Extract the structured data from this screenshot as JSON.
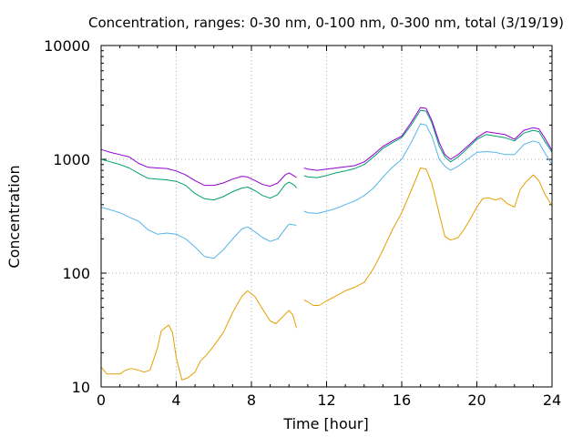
{
  "chart_data": {
    "type": "line",
    "title": "Concentration, ranges: 0-30 nm, 0-100 nm, 0-300 nm, total (3/19/19)",
    "xlabel": "Time [hour]",
    "ylabel": "Concentration",
    "xlim": [
      0,
      24
    ],
    "ylim": [
      10,
      10000
    ],
    "yscale": "log",
    "grid": true,
    "legend": "none",
    "x_ticks": [
      "0",
      "4",
      "8",
      "12",
      "16",
      "20",
      "24"
    ],
    "y_ticks": [
      "10",
      "100",
      "1000",
      "10000"
    ],
    "series": [
      {
        "color": "#e69f00",
        "segments": [
          [
            [
              0,
              15
            ],
            [
              0.3,
              13
            ],
            [
              0.6,
              13
            ],
            [
              1,
              13
            ],
            [
              1.3,
              14
            ],
            [
              1.6,
              14.5
            ],
            [
              2,
              14
            ],
            [
              2.3,
              13.5
            ],
            [
              2.6,
              14
            ],
            [
              3,
              22
            ],
            [
              3.2,
              31
            ],
            [
              3.4,
              33
            ],
            [
              3.6,
              35
            ],
            [
              3.8,
              30
            ],
            [
              4,
              18
            ],
            [
              4.3,
              11.5
            ],
            [
              4.6,
              12
            ],
            [
              5,
              13.5
            ],
            [
              5.3,
              17
            ],
            [
              5.6,
              19
            ],
            [
              6,
              23
            ],
            [
              6.5,
              30
            ],
            [
              7,
              45
            ],
            [
              7.5,
              63
            ],
            [
              7.8,
              70
            ],
            [
              8.2,
              62
            ],
            [
              8.6,
              48
            ],
            [
              9,
              38
            ],
            [
              9.3,
              36
            ],
            [
              9.7,
              42
            ],
            [
              10,
              47
            ],
            [
              10.2,
              43
            ],
            [
              10.4,
              33
            ]
          ],
          [
            [
              10.8,
              58
            ],
            [
              11,
              56
            ],
            [
              11.3,
              52
            ],
            [
              11.6,
              52
            ],
            [
              12,
              57
            ],
            [
              12.5,
              63
            ],
            [
              13,
              70
            ],
            [
              13.5,
              75
            ],
            [
              14,
              83
            ],
            [
              14.5,
              110
            ],
            [
              15,
              160
            ],
            [
              15.5,
              240
            ],
            [
              16,
              340
            ],
            [
              16.5,
              530
            ],
            [
              17,
              840
            ],
            [
              17.3,
              820
            ],
            [
              17.6,
              620
            ],
            [
              18,
              330
            ],
            [
              18.3,
              210
            ],
            [
              18.6,
              195
            ],
            [
              19,
              205
            ],
            [
              19.3,
              240
            ],
            [
              19.6,
              290
            ],
            [
              20,
              380
            ],
            [
              20.3,
              450
            ],
            [
              20.6,
              460
            ],
            [
              21,
              440
            ],
            [
              21.3,
              455
            ],
            [
              21.6,
              410
            ],
            [
              22,
              380
            ],
            [
              22.3,
              540
            ],
            [
              22.6,
              630
            ],
            [
              23,
              730
            ],
            [
              23.3,
              650
            ],
            [
              23.6,
              500
            ],
            [
              24,
              390
            ]
          ]
        ]
      },
      {
        "color": "#56b4e9",
        "segments": [
          [
            [
              0,
              380
            ],
            [
              0.5,
              360
            ],
            [
              1,
              340
            ],
            [
              1.5,
              310
            ],
            [
              2,
              285
            ],
            [
              2.5,
              240
            ],
            [
              3,
              220
            ],
            [
              3.5,
              225
            ],
            [
              4,
              220
            ],
            [
              4.5,
              200
            ],
            [
              5,
              170
            ],
            [
              5.5,
              140
            ],
            [
              6,
              135
            ],
            [
              6.5,
              160
            ],
            [
              7,
              200
            ],
            [
              7.5,
              245
            ],
            [
              7.8,
              255
            ],
            [
              8.2,
              230
            ],
            [
              8.6,
              205
            ],
            [
              9,
              190
            ],
            [
              9.4,
              200
            ],
            [
              9.8,
              245
            ],
            [
              10,
              270
            ],
            [
              10.3,
              265
            ],
            [
              10.4,
              260
            ]
          ],
          [
            [
              10.8,
              350
            ],
            [
              11,
              340
            ],
            [
              11.5,
              335
            ],
            [
              12,
              350
            ],
            [
              12.5,
              370
            ],
            [
              13,
              400
            ],
            [
              13.5,
              430
            ],
            [
              14,
              480
            ],
            [
              14.5,
              560
            ],
            [
              15,
              700
            ],
            [
              15.5,
              850
            ],
            [
              16,
              1000
            ],
            [
              16.5,
              1400
            ],
            [
              17,
              2050
            ],
            [
              17.3,
              2000
            ],
            [
              17.6,
              1600
            ],
            [
              18,
              1000
            ],
            [
              18.3,
              870
            ],
            [
              18.6,
              800
            ],
            [
              19,
              870
            ],
            [
              19.5,
              1000
            ],
            [
              20,
              1150
            ],
            [
              20.5,
              1170
            ],
            [
              21,
              1150
            ],
            [
              21.5,
              1100
            ],
            [
              22,
              1100
            ],
            [
              22.5,
              1350
            ],
            [
              23,
              1450
            ],
            [
              23.3,
              1400
            ],
            [
              23.6,
              1150
            ],
            [
              24,
              900
            ]
          ]
        ]
      },
      {
        "color": "#009e73",
        "segments": [
          [
            [
              0,
              1000
            ],
            [
              0.5,
              950
            ],
            [
              1,
              900
            ],
            [
              1.5,
              840
            ],
            [
              2,
              750
            ],
            [
              2.5,
              680
            ],
            [
              3,
              670
            ],
            [
              3.5,
              660
            ],
            [
              4,
              640
            ],
            [
              4.5,
              590
            ],
            [
              5,
              500
            ],
            [
              5.5,
              450
            ],
            [
              6,
              440
            ],
            [
              6.5,
              470
            ],
            [
              7,
              520
            ],
            [
              7.5,
              560
            ],
            [
              7.8,
              570
            ],
            [
              8.2,
              530
            ],
            [
              8.6,
              480
            ],
            [
              9,
              455
            ],
            [
              9.4,
              490
            ],
            [
              9.8,
              600
            ],
            [
              10,
              630
            ],
            [
              10.3,
              590
            ],
            [
              10.4,
              560
            ]
          ],
          [
            [
              10.8,
              720
            ],
            [
              11,
              700
            ],
            [
              11.5,
              690
            ],
            [
              12,
              720
            ],
            [
              12.5,
              760
            ],
            [
              13,
              790
            ],
            [
              13.5,
              830
            ],
            [
              14,
              900
            ],
            [
              14.5,
              1050
            ],
            [
              15,
              1250
            ],
            [
              15.5,
              1400
            ],
            [
              16,
              1550
            ],
            [
              16.5,
              2000
            ],
            [
              17,
              2700
            ],
            [
              17.3,
              2650
            ],
            [
              17.6,
              2100
            ],
            [
              18,
              1300
            ],
            [
              18.3,
              1050
            ],
            [
              18.6,
              950
            ],
            [
              19,
              1050
            ],
            [
              19.5,
              1250
            ],
            [
              20,
              1500
            ],
            [
              20.5,
              1650
            ],
            [
              21,
              1600
            ],
            [
              21.5,
              1550
            ],
            [
              22,
              1450
            ],
            [
              22.5,
              1700
            ],
            [
              23,
              1800
            ],
            [
              23.3,
              1750
            ],
            [
              23.6,
              1450
            ],
            [
              24,
              1150
            ]
          ]
        ]
      },
      {
        "color": "#9400d3",
        "segments": [
          [
            [
              0,
              1220
            ],
            [
              0.5,
              1150
            ],
            [
              1,
              1100
            ],
            [
              1.5,
              1050
            ],
            [
              2,
              920
            ],
            [
              2.5,
              850
            ],
            [
              3,
              840
            ],
            [
              3.5,
              830
            ],
            [
              4,
              790
            ],
            [
              4.5,
              730
            ],
            [
              5,
              650
            ],
            [
              5.5,
              590
            ],
            [
              6,
              590
            ],
            [
              6.5,
              620
            ],
            [
              7,
              670
            ],
            [
              7.5,
              710
            ],
            [
              7.8,
              700
            ],
            [
              8.2,
              650
            ],
            [
              8.6,
              600
            ],
            [
              9,
              580
            ],
            [
              9.4,
              620
            ],
            [
              9.8,
              730
            ],
            [
              10,
              760
            ],
            [
              10.3,
              710
            ],
            [
              10.4,
              690
            ]
          ],
          [
            [
              10.8,
              840
            ],
            [
              11,
              820
            ],
            [
              11.5,
              800
            ],
            [
              12,
              820
            ],
            [
              12.5,
              840
            ],
            [
              13,
              860
            ],
            [
              13.5,
              880
            ],
            [
              14,
              950
            ],
            [
              14.5,
              1100
            ],
            [
              15,
              1300
            ],
            [
              15.5,
              1450
            ],
            [
              16,
              1600
            ],
            [
              16.5,
              2100
            ],
            [
              17,
              2850
            ],
            [
              17.3,
              2800
            ],
            [
              17.6,
              2200
            ],
            [
              18,
              1400
            ],
            [
              18.3,
              1100
            ],
            [
              18.6,
              1000
            ],
            [
              19,
              1100
            ],
            [
              19.5,
              1300
            ],
            [
              20,
              1550
            ],
            [
              20.5,
              1750
            ],
            [
              21,
              1700
            ],
            [
              21.5,
              1650
            ],
            [
              22,
              1500
            ],
            [
              22.5,
              1800
            ],
            [
              23,
              1900
            ],
            [
              23.3,
              1850
            ],
            [
              23.6,
              1550
            ],
            [
              24,
              1200
            ]
          ]
        ]
      }
    ]
  }
}
